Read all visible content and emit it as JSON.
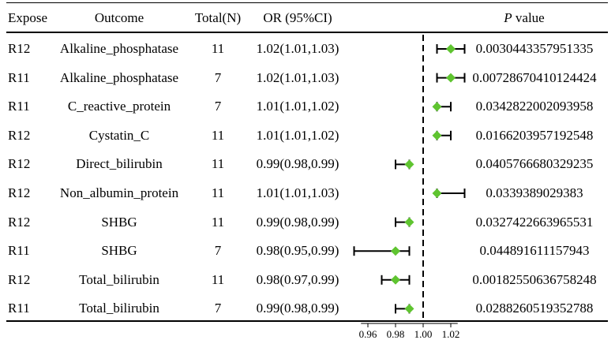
{
  "header": {
    "expose": "Expose",
    "outcome": "Outcome",
    "total": "Total(N)",
    "or": "OR (95%CI)",
    "p_italic": "P",
    "p_rest": " value"
  },
  "rows": [
    {
      "expose": "R12",
      "outcome": "Alkaline_phosphatase",
      "total": "11",
      "or_text": "1.02(1.01,1.03)",
      "p": "0.0030443357951335"
    },
    {
      "expose": "R11",
      "outcome": "Alkaline_phosphatase",
      "total": "7",
      "or_text": "1.02(1.01,1.03)",
      "p": "0.00728670410124424"
    },
    {
      "expose": "R11",
      "outcome": "C_reactive_protein",
      "total": "7",
      "or_text": "1.01(1.01,1.02)",
      "p": "0.0342822002093958"
    },
    {
      "expose": "R12",
      "outcome": "Cystatin_C",
      "total": "11",
      "or_text": "1.01(1.01,1.02)",
      "p": "0.0166203957192548"
    },
    {
      "expose": "R12",
      "outcome": "Direct_bilirubin",
      "total": "11",
      "or_text": "0.99(0.98,0.99)",
      "p": "0.0405766680329235"
    },
    {
      "expose": "R12",
      "outcome": "Non_albumin_protein",
      "total": "11",
      "or_text": "1.01(1.01,1.03)",
      "p": "0.0339389029383"
    },
    {
      "expose": "R12",
      "outcome": "SHBG",
      "total": "11",
      "or_text": "0.99(0.98,0.99)",
      "p": "0.0327422663965531"
    },
    {
      "expose": "R11",
      "outcome": "SHBG",
      "total": "7",
      "or_text": "0.98(0.95,0.99)",
      "p": "0.044891611157943"
    },
    {
      "expose": "R12",
      "outcome": "Total_bilirubin",
      "total": "11",
      "or_text": "0.98(0.97,0.99)",
      "p": "0.00182550636758248"
    },
    {
      "expose": "R11",
      "outcome": "Total_bilirubin",
      "total": "7",
      "or_text": "0.99(0.98,0.99)",
      "p": "0.0288260519352788"
    }
  ],
  "chart_data": {
    "type": "scatter",
    "title": "",
    "xlabel": "",
    "ylabel": "",
    "xlim": [
      0.95,
      1.03
    ],
    "reference_line": 1.0,
    "x_ticks": [
      "0.96",
      "0.98",
      "1.00",
      "1.02"
    ],
    "x_tick_values": [
      0.96,
      0.98,
      1.0,
      1.02
    ],
    "point_color": "#5fc430",
    "categories": [
      "R12 Alkaline_phosphatase",
      "R11 Alkaline_phosphatase",
      "R11 C_reactive_protein",
      "R12 Cystatin_C",
      "R12 Direct_bilirubin",
      "R12 Non_albumin_protein",
      "R12 SHBG",
      "R11 SHBG",
      "R12 Total_bilirubin",
      "R11 Total_bilirubin"
    ],
    "estimates": [
      1.02,
      1.02,
      1.01,
      1.01,
      0.99,
      1.01,
      0.99,
      0.98,
      0.98,
      0.99
    ],
    "lower": [
      1.01,
      1.01,
      1.01,
      1.01,
      0.98,
      1.01,
      0.98,
      0.95,
      0.97,
      0.98
    ],
    "upper": [
      1.03,
      1.03,
      1.02,
      1.02,
      0.99,
      1.03,
      0.99,
      0.99,
      0.99,
      0.99
    ]
  }
}
